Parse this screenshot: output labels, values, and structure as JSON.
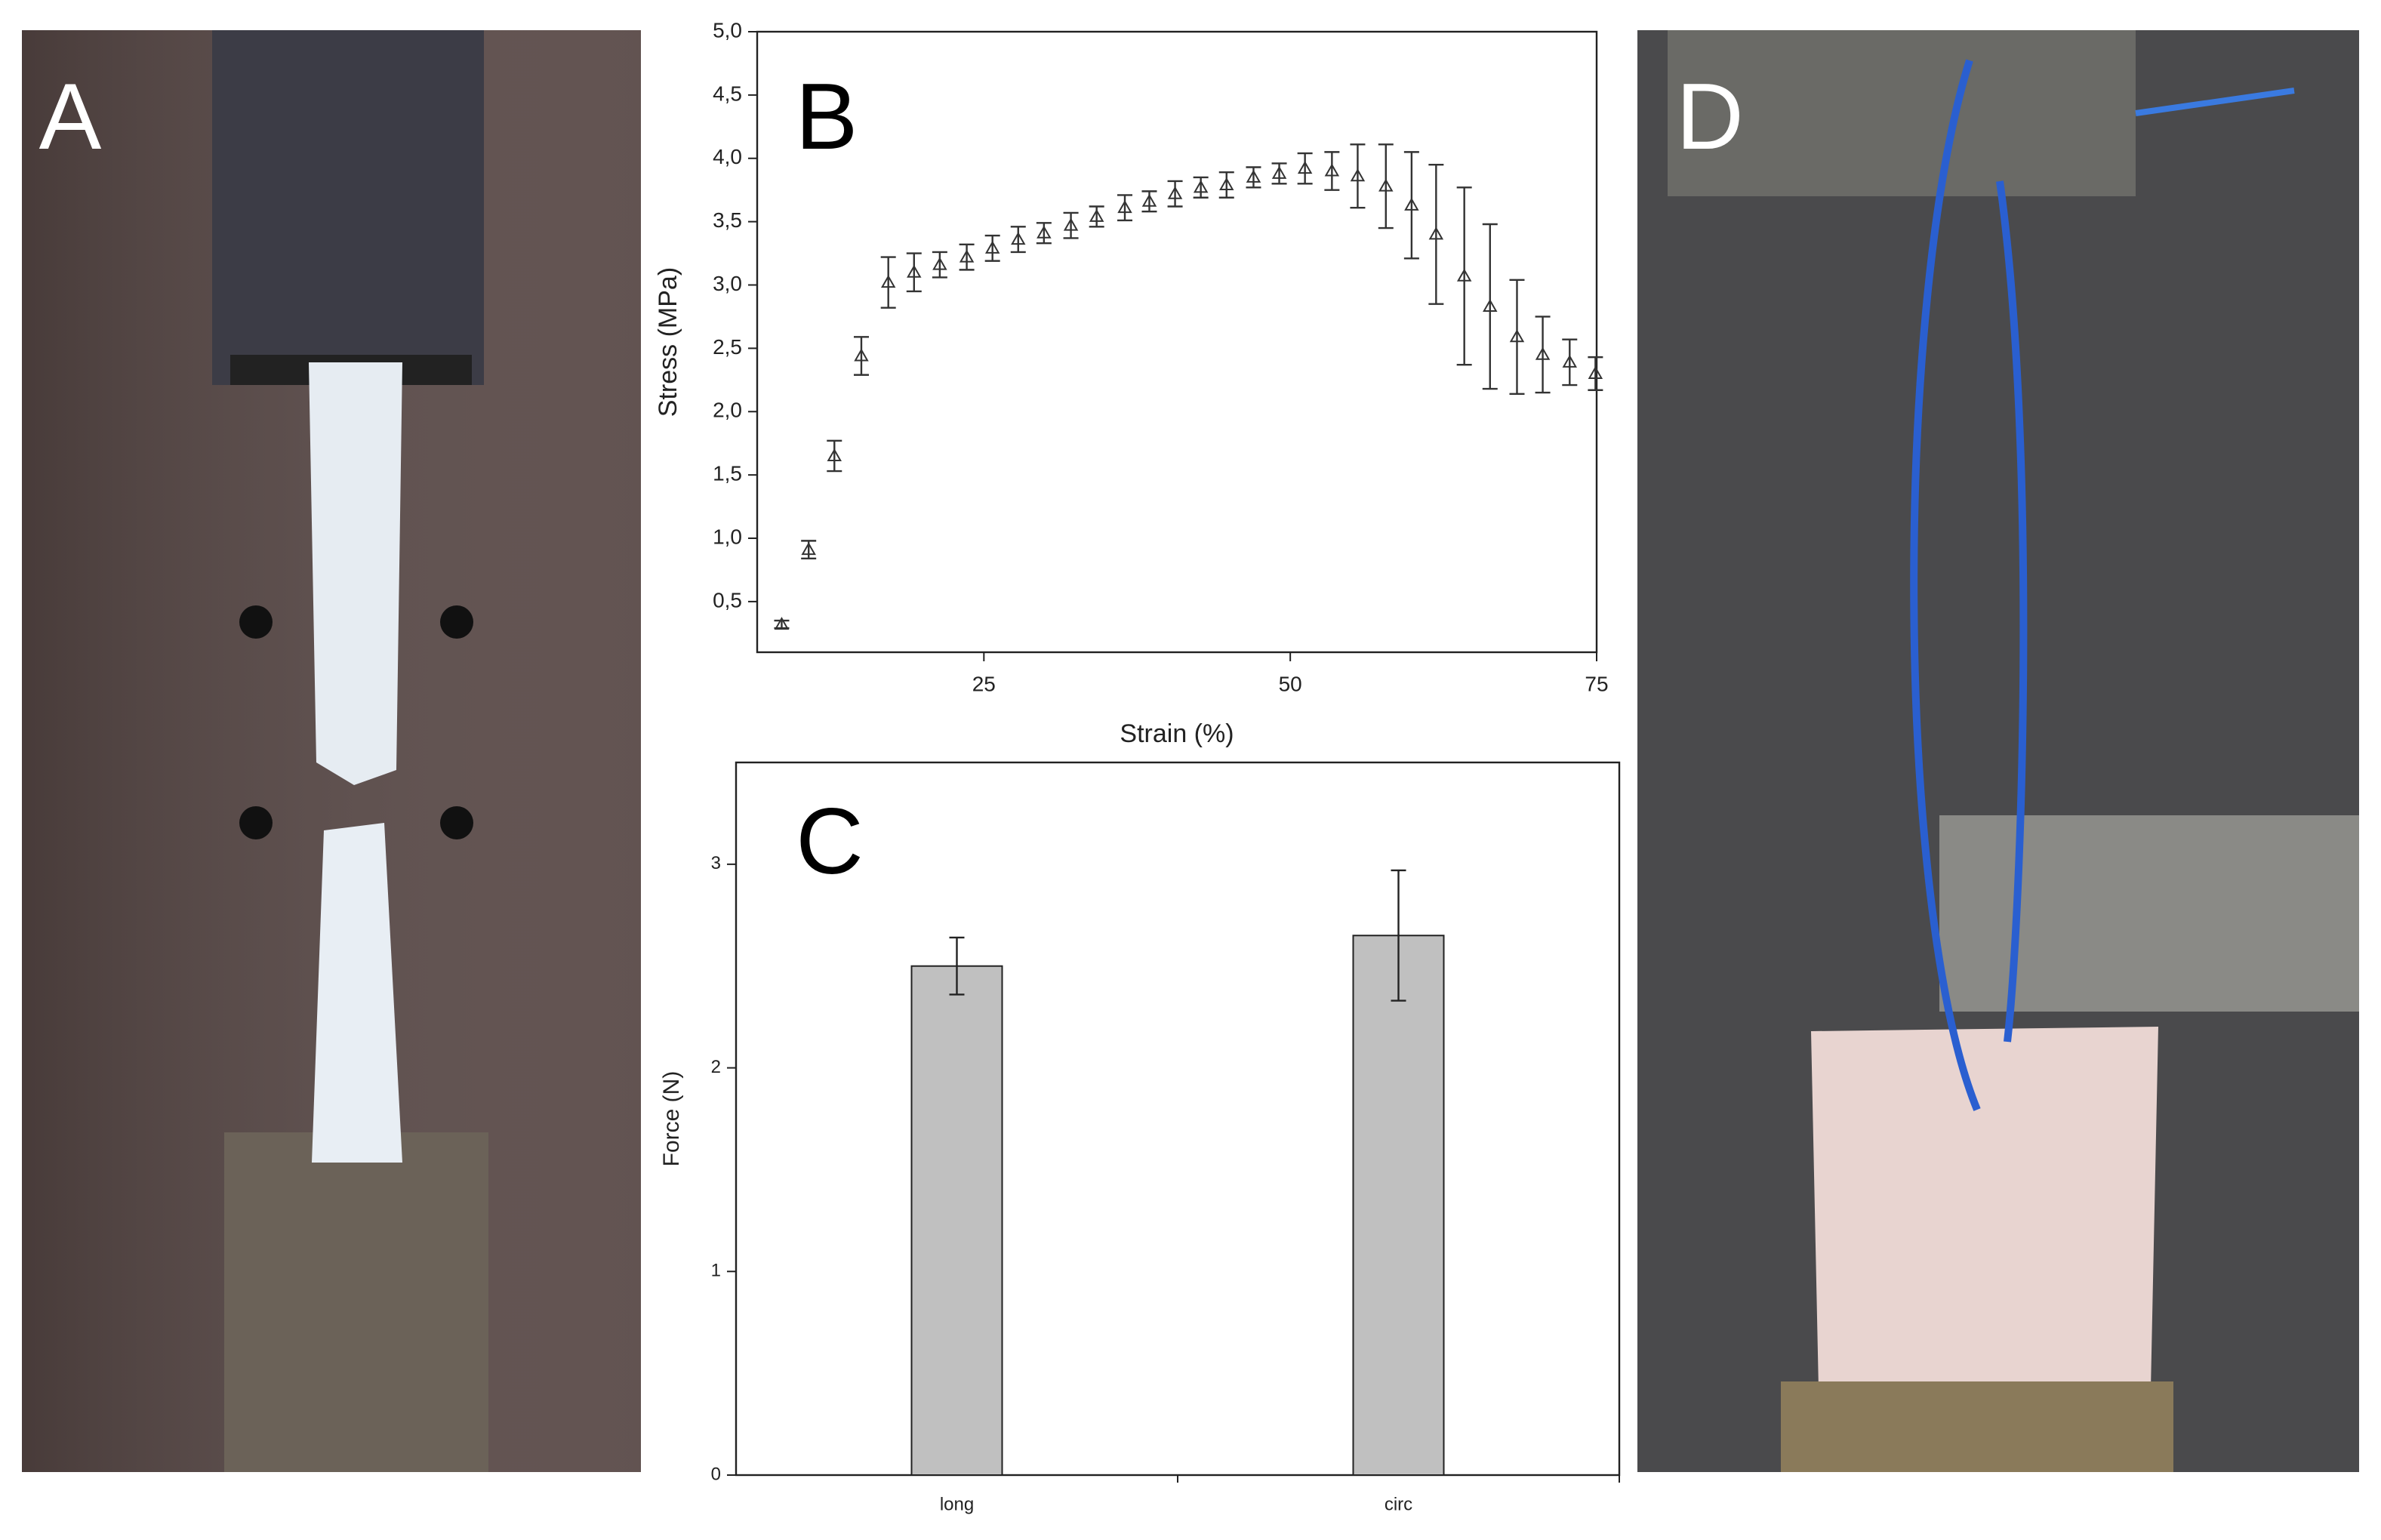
{
  "panel_labels": [
    "A",
    "B",
    "C",
    "D"
  ],
  "chart_data": [
    {
      "type": "scatter",
      "xlabel": "Strain (%)",
      "ylabel": "Stress (MPa)",
      "x": [
        8.5,
        10.7,
        12.8,
        15.0,
        17.2,
        19.3,
        21.4,
        23.6,
        25.7,
        27.8,
        29.9,
        32.1,
        34.2,
        36.5,
        38.5,
        40.6,
        42.7,
        44.8,
        47.0,
        49.1,
        51.2,
        53.4,
        55.5,
        57.8,
        59.9,
        61.9,
        64.2,
        66.3,
        68.5,
        70.6,
        72.8,
        74.9
      ],
      "series": [
        {
          "color": "#333333",
          "values": [
            0.32,
            0.91,
            1.65,
            2.44,
            3.02,
            3.1,
            3.16,
            3.22,
            3.29,
            3.36,
            3.41,
            3.47,
            3.54,
            3.61,
            3.66,
            3.72,
            3.77,
            3.79,
            3.85,
            3.88,
            3.92,
            3.9,
            3.86,
            3.78,
            3.63,
            3.4,
            3.07,
            2.83,
            2.59,
            2.45,
            2.39,
            2.3
          ],
          "errors": [
            0.03,
            0.07,
            0.12,
            0.15,
            0.2,
            0.15,
            0.1,
            0.1,
            0.1,
            0.1,
            0.08,
            0.1,
            0.08,
            0.1,
            0.08,
            0.1,
            0.08,
            0.1,
            0.08,
            0.08,
            0.12,
            0.15,
            0.25,
            0.33,
            0.42,
            0.55,
            0.7,
            0.65,
            0.45,
            0.3,
            0.18,
            0.13
          ]
        }
      ],
      "xlim": [
        6.5,
        75
      ],
      "xticks": [
        25,
        50,
        75
      ],
      "ylim": [
        0.1,
        5.0
      ],
      "yticks": [
        {
          "value": 0.5,
          "label": "0,5"
        },
        {
          "value": 1.0,
          "label": "1,0"
        },
        {
          "value": 1.5,
          "label": "1,5"
        },
        {
          "value": 2.0,
          "label": "2,0"
        },
        {
          "value": 2.5,
          "label": "2,5"
        },
        {
          "value": 3.0,
          "label": "3,0"
        },
        {
          "value": 3.5,
          "label": "3,5"
        },
        {
          "value": 4.0,
          "label": "4,0"
        },
        {
          "value": 4.5,
          "label": "4,5"
        },
        {
          "value": 5.0,
          "label": "5,0"
        }
      ]
    },
    {
      "type": "bar",
      "ylabel": "Force (N)",
      "categories": [
        "long",
        "circ"
      ],
      "values": [
        2.5,
        2.65
      ],
      "errors": [
        0.14,
        0.32
      ],
      "color": "#c0c0c0",
      "ylim": [
        0,
        3.5
      ],
      "yticks": [
        0,
        1,
        2,
        3
      ]
    }
  ]
}
